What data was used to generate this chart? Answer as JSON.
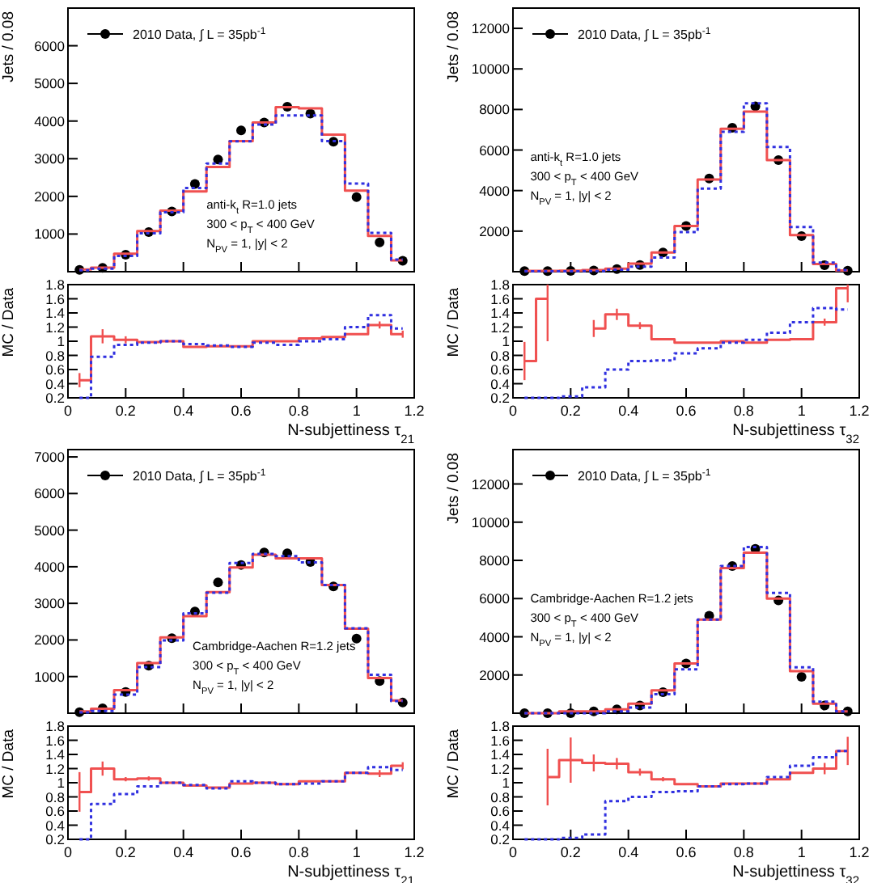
{
  "chart_data": [
    {
      "type": "step",
      "ylabel": "Jets / 0.08",
      "xlim": [
        0,
        1.2
      ],
      "xticks": [
        0,
        0.2,
        0.4,
        0.6,
        0.8,
        1,
        1.2
      ],
      "ylim": [
        0,
        7000
      ],
      "yticks": [
        1000,
        2000,
        3000,
        4000,
        5000,
        6000
      ],
      "tick_labels": "y",
      "legend": "top left",
      "annotations": [
        "anti-k$_{t}$ R=1.0 jets",
        "300 < p$_{T}$ < 400 GeV",
        "N$_{PV}$ = 1, |y| < 2"
      ],
      "x": [
        0.04,
        0.12,
        0.2,
        0.28,
        0.36,
        0.44,
        0.52,
        0.6,
        0.68,
        0.76,
        0.84,
        0.92,
        1.0,
        1.08,
        1.16
      ],
      "series": [
        {
          "type": "scatter",
          "name": "2010 Data, ∫ L = 35pb$^{-1}$",
          "color": "#000000",
          "marker": "circle",
          "values": [
            50,
            100,
            450,
            1050,
            1600,
            2330,
            2980,
            3750,
            3960,
            4380,
            4200,
            3450,
            1980,
            780,
            290
          ]
        },
        {
          "color": "#f05050",
          "line_style": "solid",
          "values": [
            60,
            110,
            480,
            1080,
            1620,
            2130,
            2780,
            3470,
            3960,
            4370,
            4340,
            3640,
            2150,
            950,
            300
          ]
        },
        {
          "color": "#3030e0",
          "line_style": "dotted",
          "values": [
            40,
            80,
            420,
            1020,
            1580,
            2220,
            2870,
            3460,
            3910,
            4150,
            4150,
            3470,
            2340,
            1030,
            320
          ]
        }
      ]
    },
    {
      "type": "step",
      "xlabel": "N-subjettiness τ$_{21}$",
      "ylabel": "MC / Data",
      "xlim": [
        0,
        1.2
      ],
      "xticks": [
        0,
        0.2,
        0.4,
        0.6,
        0.8,
        1,
        1.2
      ],
      "ylim": [
        0.2,
        1.8
      ],
      "yticks": [
        0.2,
        0.4,
        0.6,
        0.8,
        1,
        1.2,
        1.4,
        1.6,
        1.8
      ],
      "x": [
        0.04,
        0.12,
        0.2,
        0.28,
        0.36,
        0.44,
        0.52,
        0.6,
        0.68,
        0.76,
        0.84,
        0.92,
        1.0,
        1.08,
        1.16
      ],
      "series": [
        {
          "color": "#f05050",
          "line_style": "solid",
          "values": [
            0.45,
            1.07,
            1.02,
            0.99,
            1.0,
            0.92,
            0.93,
            0.93,
            1.0,
            1.0,
            1.04,
            1.06,
            1.1,
            1.23,
            1.1
          ],
          "errors": [
            0.1,
            0.1,
            0.05,
            null,
            null,
            null,
            null,
            null,
            null,
            null,
            null,
            null,
            null,
            0.05,
            0.05
          ]
        },
        {
          "color": "#3030e0",
          "line_style": "dotted",
          "values": [
            0.2,
            0.78,
            0.95,
            0.98,
            1.0,
            0.96,
            0.94,
            0.92,
            0.98,
            0.95,
            1.0,
            1.03,
            1.2,
            1.37,
            1.18
          ]
        }
      ]
    },
    {
      "type": "step",
      "ylabel": "Jets / 0.08",
      "xlim": [
        0,
        1.2
      ],
      "xticks": [
        0,
        0.2,
        0.4,
        0.6,
        0.8,
        1,
        1.2
      ],
      "ylim": [
        0,
        13000
      ],
      "yticks": [
        2000,
        4000,
        6000,
        8000,
        10000,
        12000
      ],
      "tick_labels": "y",
      "legend": "top left",
      "annotations": [
        "anti-k$_{t}$ R=1.0 jets",
        "300 < p$_{T}$ < 400 GeV",
        "N$_{PV}$ = 1, |y| < 2"
      ],
      "x": [
        0.04,
        0.12,
        0.2,
        0.28,
        0.36,
        0.44,
        0.52,
        0.6,
        0.68,
        0.76,
        0.84,
        0.92,
        1.0,
        1.08,
        1.16
      ],
      "series": [
        {
          "type": "scatter",
          "name": "2010 Data, ∫ L = 35pb$^{-1}$",
          "color": "#000000",
          "marker": "circle",
          "values": [
            30,
            30,
            40,
            60,
            130,
            330,
            950,
            2250,
            4600,
            7100,
            8150,
            5500,
            1750,
            320,
            50
          ]
        },
        {
          "color": "#f05050",
          "line_style": "solid",
          "values": [
            40,
            40,
            50,
            80,
            150,
            400,
            950,
            2250,
            4550,
            7050,
            7900,
            5500,
            1800,
            380,
            60
          ]
        },
        {
          "color": "#3030e0",
          "line_style": "dotted",
          "values": [
            20,
            20,
            20,
            30,
            100,
            250,
            700,
            1950,
            4100,
            6900,
            8300,
            6150,
            2200,
            450,
            80
          ]
        }
      ]
    },
    {
      "type": "step",
      "xlabel": "N-subjettiness τ$_{32}$",
      "ylabel": "MC / Data",
      "xlim": [
        0,
        1.2
      ],
      "xticks": [
        0,
        0.2,
        0.4,
        0.6,
        0.8,
        1,
        1.2
      ],
      "ylim": [
        0.2,
        1.8
      ],
      "yticks": [
        0.2,
        0.4,
        0.6,
        0.8,
        1,
        1.2,
        1.4,
        1.6,
        1.8
      ],
      "x": [
        0.04,
        0.12,
        0.2,
        0.28,
        0.36,
        0.44,
        0.52,
        0.6,
        0.68,
        0.76,
        0.84,
        0.92,
        1.0,
        1.08,
        1.16
      ],
      "series": [
        {
          "color": "#f05050",
          "line_style": "solid",
          "values": [
            0.72,
            1.6,
            null,
            1.18,
            1.38,
            1.22,
            1.03,
            0.98,
            0.98,
            1.0,
            0.98,
            1.02,
            1.03,
            1.27,
            1.75
          ],
          "errors": [
            0.27,
            [
              1.0,
              1.8
            ],
            null,
            0.12,
            0.08,
            0.05,
            null,
            null,
            null,
            null,
            null,
            null,
            null,
            0.05,
            [
              1.55,
              1.8
            ]
          ]
        },
        {
          "color": "#3030e0",
          "line_style": "dotted",
          "values": [
            0.2,
            0.2,
            0.22,
            0.35,
            0.6,
            0.72,
            0.73,
            0.83,
            0.9,
            0.98,
            1.02,
            1.12,
            1.27,
            1.47,
            1.45
          ]
        }
      ]
    },
    {
      "type": "step",
      "xlim": [
        0,
        1.2
      ],
      "xticks": [
        0,
        0.2,
        0.4,
        0.6,
        0.8,
        1,
        1.2
      ],
      "ylim": [
        0,
        7200
      ],
      "yticks": [
        1000,
        2000,
        3000,
        4000,
        5000,
        6000,
        7000
      ],
      "tick_labels": "y",
      "legend": "top left",
      "annotations": [
        "Cambridge-Aachen R=1.2 jets",
        "300 < p$_{T}$ < 400 GeV",
        "N$_{PV}$ = 1, |y| < 2"
      ],
      "x": [
        0.04,
        0.12,
        0.2,
        0.28,
        0.36,
        0.44,
        0.52,
        0.6,
        0.68,
        0.76,
        0.84,
        0.92,
        1.0,
        1.08,
        1.16
      ],
      "series": [
        {
          "type": "scatter",
          "name": "2010 Data, ∫ L = 35pb$^{-1}$",
          "color": "#000000",
          "marker": "circle",
          "values": [
            30,
            130,
            580,
            1300,
            2050,
            2780,
            3570,
            4050,
            4390,
            4370,
            4130,
            3460,
            2040,
            880,
            290
          ]
        },
        {
          "color": "#f05050",
          "line_style": "solid",
          "values": [
            50,
            120,
            630,
            1370,
            2070,
            2650,
            3310,
            3980,
            4330,
            4230,
            4230,
            3500,
            2310,
            960,
            350
          ]
        },
        {
          "color": "#3030e0",
          "line_style": "dotted",
          "values": [
            20,
            60,
            510,
            1260,
            1990,
            2730,
            3290,
            4100,
            4350,
            4290,
            4120,
            3500,
            2320,
            1050,
            330
          ]
        }
      ]
    },
    {
      "type": "step",
      "xlabel": "N-subjettiness τ$_{21}$",
      "ylabel": "MC / Data",
      "xlim": [
        0,
        1.2
      ],
      "xticks": [
        0,
        0.2,
        0.4,
        0.6,
        0.8,
        1,
        1.2
      ],
      "ylim": [
        0.2,
        1.8
      ],
      "yticks": [
        0.2,
        0.4,
        0.6,
        0.8,
        1,
        1.2,
        1.4,
        1.6,
        1.8
      ],
      "x": [
        0.04,
        0.12,
        0.2,
        0.28,
        0.36,
        0.44,
        0.52,
        0.6,
        0.68,
        0.76,
        0.84,
        0.92,
        1.0,
        1.08,
        1.16
      ],
      "series": [
        {
          "color": "#f05050",
          "line_style": "solid",
          "values": [
            0.87,
            1.2,
            1.05,
            1.06,
            1.0,
            0.96,
            0.93,
            0.99,
            1.0,
            0.98,
            1.02,
            1.02,
            1.14,
            1.13,
            1.24
          ],
          "errors": [
            0.28,
            0.1,
            0.03,
            0.03,
            null,
            null,
            null,
            null,
            null,
            null,
            null,
            null,
            null,
            0.05,
            0.05
          ]
        },
        {
          "color": "#3030e0",
          "line_style": "dotted",
          "values": [
            0.2,
            0.7,
            0.84,
            0.95,
            1.0,
            0.97,
            0.92,
            1.02,
            1.0,
            0.98,
            0.99,
            1.02,
            1.14,
            1.22,
            1.18
          ]
        }
      ]
    },
    {
      "type": "step",
      "ylabel": "Jets / 0.08",
      "xlim": [
        0,
        1.2
      ],
      "xticks": [
        0,
        0.2,
        0.4,
        0.6,
        0.8,
        1,
        1.2
      ],
      "ylim": [
        0,
        13800
      ],
      "yticks": [
        2000,
        4000,
        6000,
        8000,
        10000,
        12000
      ],
      "tick_labels": "y",
      "legend": "top left",
      "annotations": [
        "Cambridge-Aachen R=1.2 jets",
        "300 < p$_{T}$ < 400 GeV",
        "N$_{PV}$ = 1, |y| < 2"
      ],
      "x": [
        0.04,
        0.12,
        0.2,
        0.28,
        0.36,
        0.44,
        0.52,
        0.6,
        0.68,
        0.76,
        0.84,
        0.92,
        1.0,
        1.08,
        1.16
      ],
      "series": [
        {
          "type": "scatter",
          "name": "2010 Data, ∫ L = 35pb$^{-1}$",
          "color": "#000000",
          "marker": "circle",
          "values": [
            0,
            0,
            0,
            100,
            200,
            400,
            1100,
            2600,
            5100,
            7700,
            8600,
            5900,
            1900,
            400,
            100
          ]
        },
        {
          "color": "#f05050",
          "line_style": "solid",
          "values": [
            0,
            0,
            100,
            100,
            200,
            500,
            1200,
            2600,
            4900,
            7600,
            8400,
            6000,
            2200,
            500,
            100
          ]
        },
        {
          "color": "#3030e0",
          "line_style": "dotted",
          "values": [
            0,
            0,
            0,
            0,
            100,
            300,
            1000,
            2300,
            4900,
            7700,
            8700,
            6300,
            2400,
            600,
            100
          ]
        }
      ]
    },
    {
      "type": "step",
      "xlabel": "N-subjettiness τ$_{32}$",
      "ylabel": "MC / Data",
      "xlim": [
        0,
        1.2
      ],
      "xticks": [
        0,
        0.2,
        0.4,
        0.6,
        0.8,
        1,
        1.2
      ],
      "ylim": [
        0.2,
        1.8
      ],
      "yticks": [
        0.2,
        0.4,
        0.6,
        0.8,
        1,
        1.2,
        1.4,
        1.6,
        1.8
      ],
      "x": [
        0.04,
        0.12,
        0.2,
        0.28,
        0.36,
        0.44,
        0.52,
        0.6,
        0.68,
        0.76,
        0.84,
        0.92,
        1.0,
        1.08,
        1.16
      ],
      "series": [
        {
          "color": "#f05050",
          "line_style": "solid",
          "values": [
            null,
            1.08,
            1.32,
            1.28,
            1.27,
            1.15,
            1.05,
            0.98,
            0.95,
            0.99,
            0.99,
            1.05,
            1.14,
            1.2,
            1.45
          ],
          "errors": [
            null,
            0.4,
            0.32,
            0.12,
            0.08,
            0.05,
            0.03,
            null,
            null,
            null,
            null,
            null,
            null,
            0.08,
            0.2
          ]
        },
        {
          "color": "#3030e0",
          "line_style": "dotted",
          "values": [
            0.2,
            0.2,
            0.22,
            0.27,
            0.74,
            0.8,
            0.87,
            0.88,
            0.95,
            0.98,
            0.99,
            1.08,
            1.24,
            1.36,
            1.45
          ]
        }
      ]
    }
  ]
}
